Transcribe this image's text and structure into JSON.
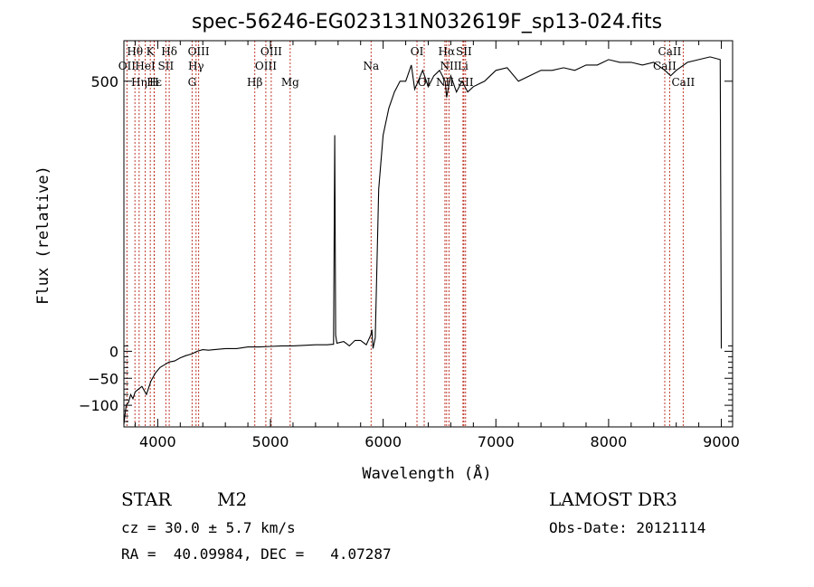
{
  "chart_data": {
    "type": "line",
    "title": "spec-56246-EG023131N032619F_sp13-024.fits",
    "xlabel": "Wavelength (Å)",
    "ylabel": "Flux (relative)",
    "xlim": [
      3700,
      9100
    ],
    "ylim": [
      -140,
      575
    ],
    "xticks": [
      4000,
      5000,
      6000,
      7000,
      8000,
      9000
    ],
    "yticks": [
      -100,
      -50,
      0,
      500
    ],
    "x": [
      3700,
      3720,
      3740,
      3760,
      3780,
      3800,
      3830,
      3860,
      3900,
      3940,
      3980,
      4020,
      4060,
      4100,
      4150,
      4200,
      4250,
      4300,
      4350,
      4400,
      4450,
      4500,
      4600,
      4700,
      4800,
      4900,
      5000,
      5100,
      5200,
      5300,
      5400,
      5500,
      5560,
      5570,
      5578,
      5590,
      5650,
      5700,
      5750,
      5800,
      5850,
      5890,
      5900,
      5910,
      5930,
      5960,
      6000,
      6050,
      6100,
      6150,
      6200,
      6250,
      6280,
      6300,
      6350,
      6400,
      6450,
      6500,
      6550,
      6563,
      6600,
      6650,
      6700,
      6750,
      6800,
      6850,
      6900,
      6950,
      7000,
      7100,
      7200,
      7300,
      7400,
      7500,
      7600,
      7700,
      7800,
      7900,
      8000,
      8100,
      8200,
      8300,
      8400,
      8500,
      8550,
      8600,
      8700,
      8800,
      8900,
      8990,
      9000
    ],
    "values": [
      -135,
      -100,
      -95,
      -80,
      -88,
      -75,
      -70,
      -65,
      -80,
      -55,
      -40,
      -30,
      -25,
      -20,
      -18,
      -12,
      -8,
      -5,
      0,
      3,
      2,
      3,
      5,
      5,
      8,
      8,
      9,
      10,
      10,
      11,
      12,
      12,
      13,
      400,
      30,
      15,
      18,
      10,
      20,
      20,
      12,
      30,
      40,
      5,
      25,
      300,
      400,
      450,
      480,
      500,
      500,
      530,
      485,
      495,
      520,
      490,
      510,
      520,
      500,
      470,
      510,
      480,
      500,
      480,
      490,
      495,
      500,
      510,
      520,
      525,
      500,
      510,
      520,
      520,
      525,
      520,
      530,
      530,
      540,
      535,
      535,
      530,
      535,
      520,
      510,
      520,
      535,
      540,
      545,
      540,
      5
    ],
    "emission_lines": [
      {
        "name": "Hθ",
        "wl": 3798,
        "row": 1
      },
      {
        "name": "OII",
        "wl": 3727,
        "row": 2
      },
      {
        "name": "Hη",
        "wl": 3835,
        "row": 3
      },
      {
        "name": "K",
        "wl": 3934,
        "row": 1
      },
      {
        "name": "HeI",
        "wl": 3889,
        "row": 2
      },
      {
        "name": "Hε",
        "wl": 3970,
        "row": 3
      },
      {
        "name": "SII",
        "wl": 4072,
        "row": 2
      },
      {
        "name": "H",
        "wl": 3968,
        "row": 3
      },
      {
        "name": "Hδ",
        "wl": 4102,
        "row": 1
      },
      {
        "name": "OIII",
        "wl": 4363,
        "row": 1
      },
      {
        "name": "Hγ",
        "wl": 4340,
        "row": 2
      },
      {
        "name": "G",
        "wl": 4305,
        "row": 3
      },
      {
        "name": "Hβ",
        "wl": 4861,
        "row": 3
      },
      {
        "name": "OIII",
        "wl": 5007,
        "row": 1
      },
      {
        "name": "OIII",
        "wl": 4959,
        "row": 2
      },
      {
        "name": "Mg",
        "wl": 5175,
        "row": 3
      },
      {
        "name": "Na",
        "wl": 5893,
        "row": 2
      },
      {
        "name": "OI",
        "wl": 6300,
        "row": 1
      },
      {
        "name": "OI",
        "wl": 6364,
        "row": 3
      },
      {
        "name": "Hα",
        "wl": 6563,
        "row": 1
      },
      {
        "name": "SII",
        "wl": 6716,
        "row": 1
      },
      {
        "name": "NII",
        "wl": 6584,
        "row": 2
      },
      {
        "name": "Li",
        "wl": 6708,
        "row": 2
      },
      {
        "name": "NII",
        "wl": 6548,
        "row": 3
      },
      {
        "name": "SII",
        "wl": 6731,
        "row": 3
      },
      {
        "name": "CaII",
        "wl": 8542,
        "row": 1
      },
      {
        "name": "CaII",
        "wl": 8498,
        "row": 2
      },
      {
        "name": "CaII",
        "wl": 8662,
        "row": 3
      }
    ]
  },
  "info": {
    "object_class": "STAR",
    "subclass": "M2",
    "survey": "LAMOST DR3",
    "redshift_text": "cz = 30.0 ± 5.7 km/s",
    "obs_date_text": "Obs-Date: 20121114",
    "coords_text": "RA =  40.09984, DEC =   4.07287"
  }
}
